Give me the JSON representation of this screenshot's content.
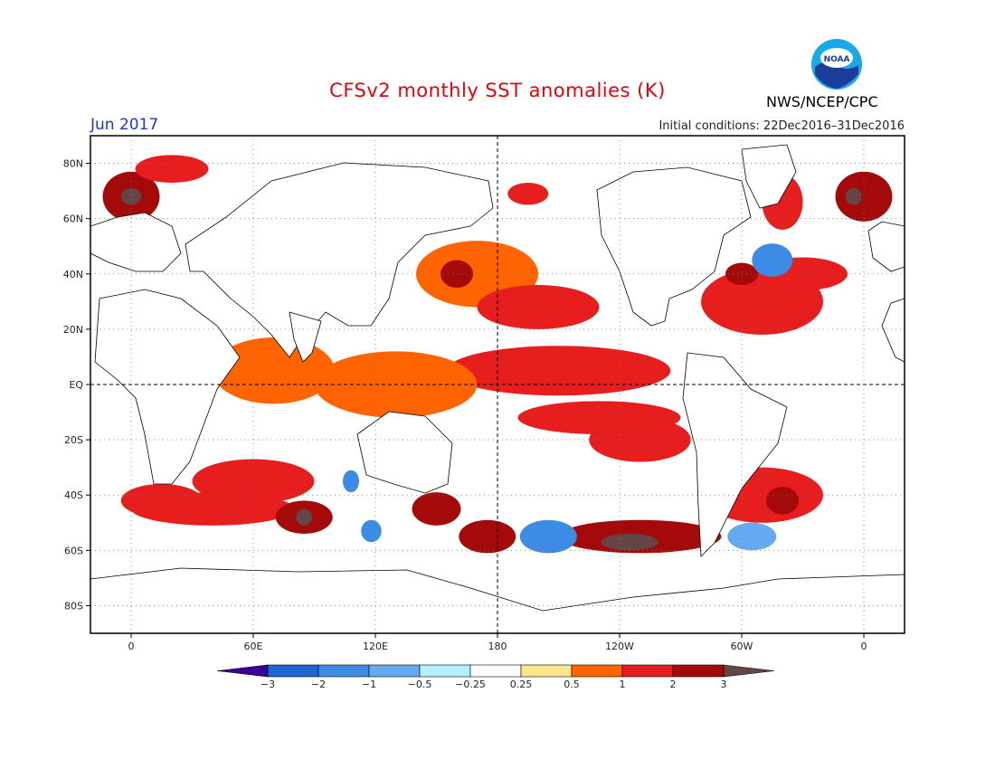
{
  "title": "CFSv2 monthly SST anomalies (K)",
  "month": "Jun 2017",
  "initial_conditions": "Initial conditions: 22Dec2016–31Dec2016",
  "agency": "NWS/NCEP/CPC",
  "logo_text": "NOAA",
  "map": {
    "lon_range": [
      -20,
      380
    ],
    "lat_range": [
      -90,
      90
    ],
    "lat_ticks": [
      {
        "lat": 80,
        "label": "80N"
      },
      {
        "lat": 60,
        "label": "60N"
      },
      {
        "lat": 40,
        "label": "40N"
      },
      {
        "lat": 20,
        "label": "20N"
      },
      {
        "lat": 0,
        "label": "EQ"
      },
      {
        "lat": -20,
        "label": "20S"
      },
      {
        "lat": -40,
        "label": "40S"
      },
      {
        "lat": -60,
        "label": "60S"
      },
      {
        "lat": -80,
        "label": "80S"
      }
    ],
    "lon_ticks": [
      {
        "lon": 0,
        "label": "0"
      },
      {
        "lon": 60,
        "label": "60E"
      },
      {
        "lon": 120,
        "label": "120E"
      },
      {
        "lon": 180,
        "label": "180"
      },
      {
        "lon": 240,
        "label": "120W"
      },
      {
        "lon": 300,
        "label": "60W"
      },
      {
        "lon": 360,
        "label": "0"
      }
    ],
    "grid_lines": "dotted",
    "reference_lines": {
      "equator": true,
      "dateline": true
    }
  },
  "colorbar": {
    "levels": [
      "−3",
      "−2",
      "−1",
      "−0.5",
      "−0.25",
      "0.25",
      "0.5",
      "1",
      "2",
      "3"
    ],
    "colors": [
      "#3c0096",
      "#1e64d2",
      "#3c8ce6",
      "#64aaf0",
      "#b4f0fa",
      "#ffffff",
      "#ffe68c",
      "#ff6400",
      "#e61e1e",
      "#a50a0a",
      "#644646"
    ]
  },
  "anomaly_regions": [
    {
      "lon": 0,
      "lat": 68,
      "rx": 14,
      "ry": 9,
      "level": 2
    },
    {
      "lon": 0,
      "lat": 68,
      "rx": 5,
      "ry": 3,
      "level": 3
    },
    {
      "lon": 20,
      "lat": 78,
      "rx": 18,
      "ry": 5,
      "level": 1
    },
    {
      "lon": 360,
      "lat": 68,
      "rx": 14,
      "ry": 9,
      "level": 2
    },
    {
      "lon": 355,
      "lat": 68,
      "rx": 4,
      "ry": 3,
      "level": 3
    },
    {
      "lon": 320,
      "lat": 66,
      "rx": 10,
      "ry": 10,
      "level": 1
    },
    {
      "lon": 195,
      "lat": 69,
      "rx": 10,
      "ry": 4,
      "level": 1
    },
    {
      "lon": 170,
      "lat": 40,
      "rx": 30,
      "ry": 12,
      "level": 0.5
    },
    {
      "lon": 160,
      "lat": 40,
      "rx": 8,
      "ry": 5,
      "level": 2
    },
    {
      "lon": 200,
      "lat": 28,
      "rx": 30,
      "ry": 8,
      "level": 1
    },
    {
      "lon": 210,
      "lat": 5,
      "rx": 55,
      "ry": 9,
      "level": 1
    },
    {
      "lon": 230,
      "lat": -12,
      "rx": 40,
      "ry": 6,
      "level": 1
    },
    {
      "lon": 250,
      "lat": -20,
      "rx": 25,
      "ry": 8,
      "level": 1
    },
    {
      "lon": 130,
      "lat": 0,
      "rx": 40,
      "ry": 12,
      "level": 0.5
    },
    {
      "lon": 70,
      "lat": 5,
      "rx": 30,
      "ry": 12,
      "level": 0.5
    },
    {
      "lon": 60,
      "lat": -35,
      "rx": 30,
      "ry": 8,
      "level": 1
    },
    {
      "lon": 40,
      "lat": -45,
      "rx": 40,
      "ry": 6,
      "level": 1
    },
    {
      "lon": 85,
      "lat": -48,
      "rx": 14,
      "ry": 6,
      "level": 2
    },
    {
      "lon": 85,
      "lat": -48,
      "rx": 4,
      "ry": 3,
      "level": 3
    },
    {
      "lon": 150,
      "lat": -45,
      "rx": 12,
      "ry": 6,
      "level": 2
    },
    {
      "lon": 175,
      "lat": -55,
      "rx": 14,
      "ry": 6,
      "level": 2
    },
    {
      "lon": 250,
      "lat": -55,
      "rx": 40,
      "ry": 6,
      "level": 2
    },
    {
      "lon": 245,
      "lat": -57,
      "rx": 14,
      "ry": 3,
      "level": 3
    },
    {
      "lon": 310,
      "lat": -40,
      "rx": 30,
      "ry": 10,
      "level": 1
    },
    {
      "lon": 320,
      "lat": -42,
      "rx": 8,
      "ry": 5,
      "level": 2
    },
    {
      "lon": 310,
      "lat": 30,
      "rx": 30,
      "ry": 12,
      "level": 1
    },
    {
      "lon": 300,
      "lat": 40,
      "rx": 8,
      "ry": 4,
      "level": 2
    },
    {
      "lon": 330,
      "lat": 40,
      "rx": 22,
      "ry": 6,
      "level": 1
    },
    {
      "lon": 15,
      "lat": -42,
      "rx": 20,
      "ry": 6,
      "level": 1
    },
    {
      "lon": 205,
      "lat": -55,
      "rx": 14,
      "ry": 6,
      "level": -1
    },
    {
      "lon": 118,
      "lat": -53,
      "rx": 5,
      "ry": 4,
      "level": -1
    },
    {
      "lon": 315,
      "lat": 45,
      "rx": 10,
      "ry": 6,
      "level": -1
    },
    {
      "lon": 108,
      "lat": -35,
      "rx": 4,
      "ry": 4,
      "level": -1
    },
    {
      "lon": 305,
      "lat": -55,
      "rx": 12,
      "ry": 5,
      "level": -0.5
    }
  ]
}
